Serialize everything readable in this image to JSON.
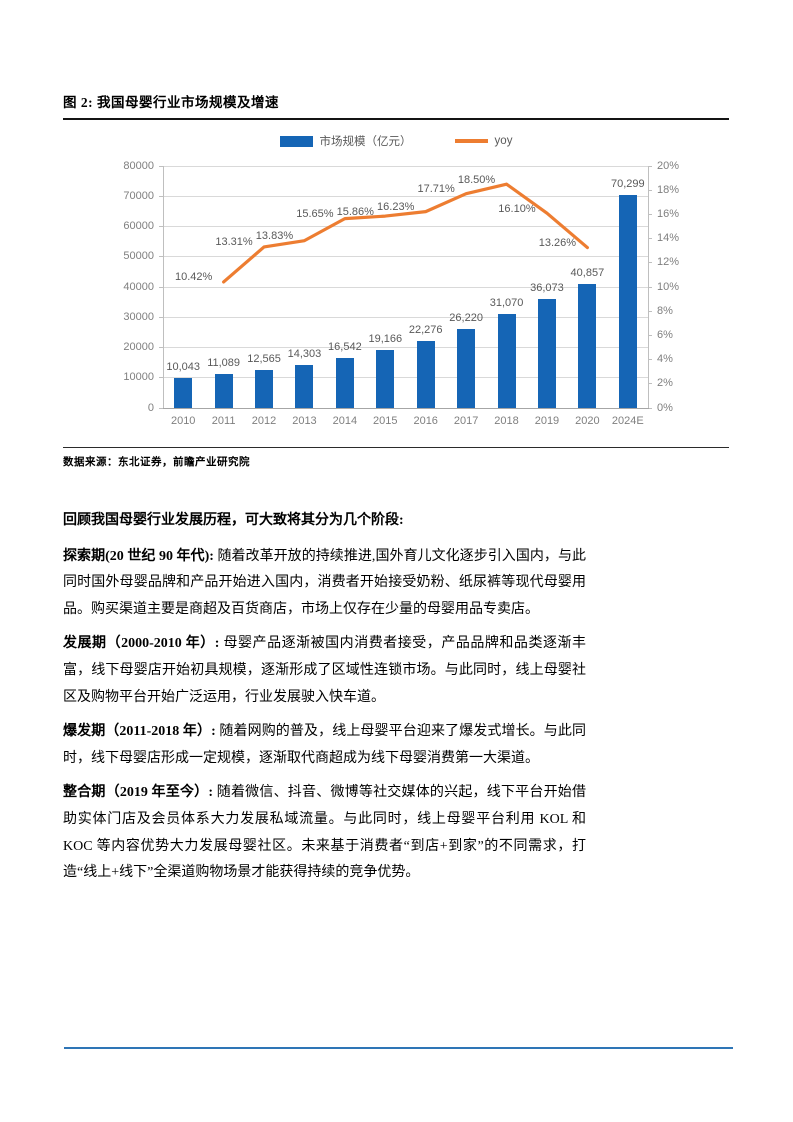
{
  "figure": {
    "title": "图 2: 我国母婴行业市场规模及增速",
    "source": "数据来源：东北证券，前瞻产业研究院"
  },
  "chart_data": {
    "type": "bar+line",
    "title": "我国母婴行业市场规模及增速",
    "categories": [
      "2010",
      "2011",
      "2012",
      "2013",
      "2014",
      "2015",
      "2016",
      "2017",
      "2018",
      "2019",
      "2020",
      "2024E"
    ],
    "series": [
      {
        "name": "市场规模（亿元）",
        "type": "bar",
        "axis": "left",
        "color": "#1565B5",
        "values": [
          10043,
          11089,
          12565,
          14303,
          16542,
          19166,
          22276,
          26220,
          31070,
          36073,
          40857,
          70299
        ],
        "labels": [
          "10,043",
          "11,089",
          "12,565",
          "14,303",
          "16,542",
          "19,166",
          "22,276",
          "26,220",
          "31,070",
          "36,073",
          "40,857",
          "70,299"
        ]
      },
      {
        "name": "yoy",
        "type": "line",
        "axis": "right",
        "color": "#ED7D31",
        "start_index": 1,
        "values": [
          10.42,
          13.31,
          13.83,
          15.65,
          15.86,
          16.23,
          17.71,
          18.5,
          16.1,
          13.26
        ],
        "labels": [
          "10.42%",
          "13.31%",
          "13.83%",
          "15.65%",
          "15.86%",
          "16.23%",
          "17.71%",
          "18.50%",
          "16.10%",
          "13.26%"
        ]
      }
    ],
    "left_axis": {
      "min": 0,
      "max": 80000,
      "step": 10000,
      "tick_labels": [
        "0",
        "10000",
        "20000",
        "30000",
        "40000",
        "50000",
        "60000",
        "70000",
        "80000"
      ]
    },
    "right_axis": {
      "min": 0,
      "max": 20,
      "step": 2,
      "tick_labels": [
        "0%",
        "2%",
        "4%",
        "6%",
        "8%",
        "10%",
        "12%",
        "14%",
        "16%",
        "18%",
        "20%"
      ]
    },
    "legend_position": "top-center",
    "grid": true
  },
  "body": {
    "heading": "回顾我国母婴行业发展历程，可大致将其分为几个阶段:",
    "stages": [
      {
        "lead": "探索期(20 世纪 90 年代):",
        "body": "随着改革开放的持续推进,国外育儿文化逐步引入国内，与此同时国外母婴品牌和产品开始进入国内，消费者开始接受奶粉、纸尿裤等现代母婴用品。购买渠道主要是商超及百货商店，市场上仅存在少量的母婴用品专卖店。"
      },
      {
        "lead": "发展期（2000-2010 年）:",
        "body": "母婴产品逐渐被国内消费者接受，产品品牌和品类逐渐丰富，线下母婴店开始初具规模，逐渐形成了区域性连锁市场。与此同时，线上母婴社区及购物平台开始广泛运用，行业发展驶入快车道。"
      },
      {
        "lead": "爆发期（2011-2018 年）:",
        "body": "随着网购的普及，线上母婴平台迎来了爆发式增长。与此同时，线下母婴店形成一定规模，逐渐取代商超成为线下母婴消费第一大渠道。"
      },
      {
        "lead": "整合期（2019 年至今）:",
        "body": "随着微信、抖音、微博等社交媒体的兴起，线下平台开始借助实体门店及会员体系大力发展私域流量。与此同时，线上母婴平台利用 KOL 和 KOC 等内容优势大力发展母婴社区。未来基于消费者“到店+到家”的不同需求，打造“线上+线下”全渠道购物场景才能获得持续的竞争优势。"
      }
    ]
  },
  "colors": {
    "bar_blue": "#1565B5",
    "line_orange": "#ED7D31",
    "footer_rule_blue": "#2E75B6",
    "gridline": "#D9D9D9",
    "axis_text": "#7F7F7F",
    "data_label_text": "#595959"
  }
}
